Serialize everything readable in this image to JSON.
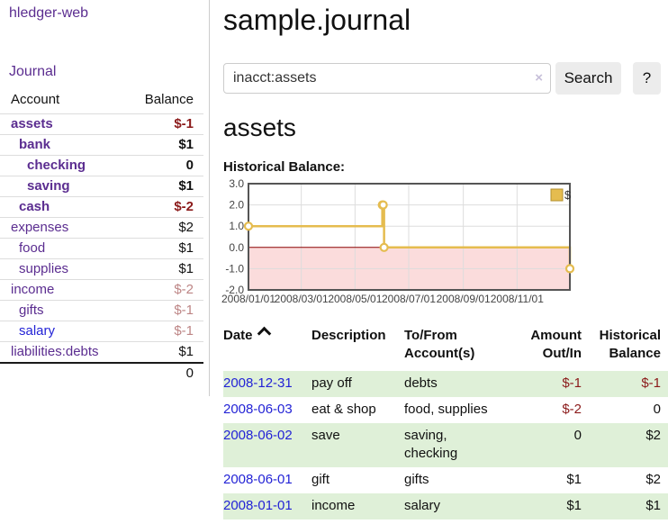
{
  "app": {
    "brand": "hledger-web"
  },
  "header": {
    "title": "sample.journal"
  },
  "search": {
    "value": "inacct:assets",
    "clear_icon": "×",
    "button_label": "Search",
    "help_label": "?"
  },
  "sidebar": {
    "journal_label": "Journal",
    "accounts_table": {
      "headers": [
        "Account",
        "Balance"
      ],
      "rows": [
        {
          "name": "assets",
          "balance": "$-1",
          "level": 1,
          "bold": true,
          "balance_color": "neg-strong"
        },
        {
          "name": "bank",
          "balance": "$1",
          "level": 2,
          "bold": true,
          "balance_color": "normal"
        },
        {
          "name": "checking",
          "balance": "0",
          "level": 3,
          "bold": true,
          "balance_color": "normal"
        },
        {
          "name": "saving",
          "balance": "$1",
          "level": 3,
          "bold": true,
          "balance_color": "normal"
        },
        {
          "name": "cash",
          "balance": "$-2",
          "level": 2,
          "bold": true,
          "balance_color": "neg-strong"
        },
        {
          "name": "expenses",
          "balance": "$2",
          "level": 1,
          "bold": false,
          "balance_color": "normal"
        },
        {
          "name": "food",
          "balance": "$1",
          "level": 2,
          "bold": false,
          "balance_color": "normal"
        },
        {
          "name": "supplies",
          "balance": "$1",
          "level": 2,
          "bold": false,
          "balance_color": "normal"
        },
        {
          "name": "income",
          "balance": "$-2",
          "level": 1,
          "bold": false,
          "balance_color": "neg-soft"
        },
        {
          "name": "gifts",
          "balance": "$-1",
          "level": 2,
          "bold": false,
          "balance_color": "neg-soft"
        },
        {
          "name": "salary",
          "balance": "$-1",
          "level": 2,
          "bold": false,
          "balance_color": "neg-soft",
          "link_color": "blue"
        },
        {
          "name": "liabilities:debts",
          "balance": "$1",
          "level": 1,
          "bold": false,
          "balance_color": "normal"
        }
      ],
      "total": "0"
    }
  },
  "account_page": {
    "title": "assets",
    "chart_label": "Historical Balance:"
  },
  "chart_data": {
    "type": "line",
    "step": true,
    "title": "Historical Balance:",
    "x_range": [
      "2008-01-01",
      "2008-12-31"
    ],
    "ylim": [
      -2.0,
      3.0
    ],
    "yticks": [
      3.0,
      2.0,
      1.0,
      0.0,
      -1.0,
      -2.0
    ],
    "xticks": [
      "2008/01/01",
      "2008/03/01",
      "2008/05/01",
      "2008/07/01",
      "2008/09/01",
      "2008/11/01"
    ],
    "grid": true,
    "legend_position": "top-right",
    "series": [
      {
        "name": "$",
        "color": "#e5bc4f",
        "points": [
          {
            "x": "2008-01-01",
            "y": 1
          },
          {
            "x": "2008-06-01",
            "y": 2
          },
          {
            "x": "2008-06-02",
            "y": 2
          },
          {
            "x": "2008-06-03",
            "y": 0
          },
          {
            "x": "2008-12-31",
            "y": -1
          }
        ]
      }
    ],
    "negative_region_color": "#fbdcdc",
    "zero_line_color": "#8b0000",
    "border_color": "#555",
    "gridline_color": "#ddd"
  },
  "register_table": {
    "headers": [
      {
        "label": "Date",
        "sortable": true,
        "sort": "asc"
      },
      {
        "label": "Description"
      },
      {
        "label": "To/From Account(s)"
      },
      {
        "label": "Amount Out/In"
      },
      {
        "label": "Historical Balance"
      }
    ],
    "rows": [
      {
        "date": "2008-12-31",
        "description": "pay off",
        "accounts": "debts",
        "amount": "$-1",
        "balance": "$-1"
      },
      {
        "date": "2008-06-03",
        "description": "eat & shop",
        "accounts": "food, supplies",
        "amount": "$-2",
        "balance": "0"
      },
      {
        "date": "2008-06-02",
        "description": "save",
        "accounts": "saving, checking",
        "amount": "0",
        "balance": "$2"
      },
      {
        "date": "2008-06-01",
        "description": "gift",
        "accounts": "gifts",
        "amount": "$1",
        "balance": "$2"
      },
      {
        "date": "2008-01-01",
        "description": "income",
        "accounts": "salary",
        "amount": "$1",
        "balance": "$1"
      }
    ]
  },
  "colors": {
    "brand_purple": "#5b2d90",
    "link_blue": "#2323d6",
    "negative_strong": "#8b1a1a",
    "negative_soft": "#bd8585",
    "row_green": "#dff0d8",
    "chart_line": "#e5bc4f",
    "chart_negative_bg": "#fbdcdc",
    "chart_zero_line": "#8b0000"
  }
}
